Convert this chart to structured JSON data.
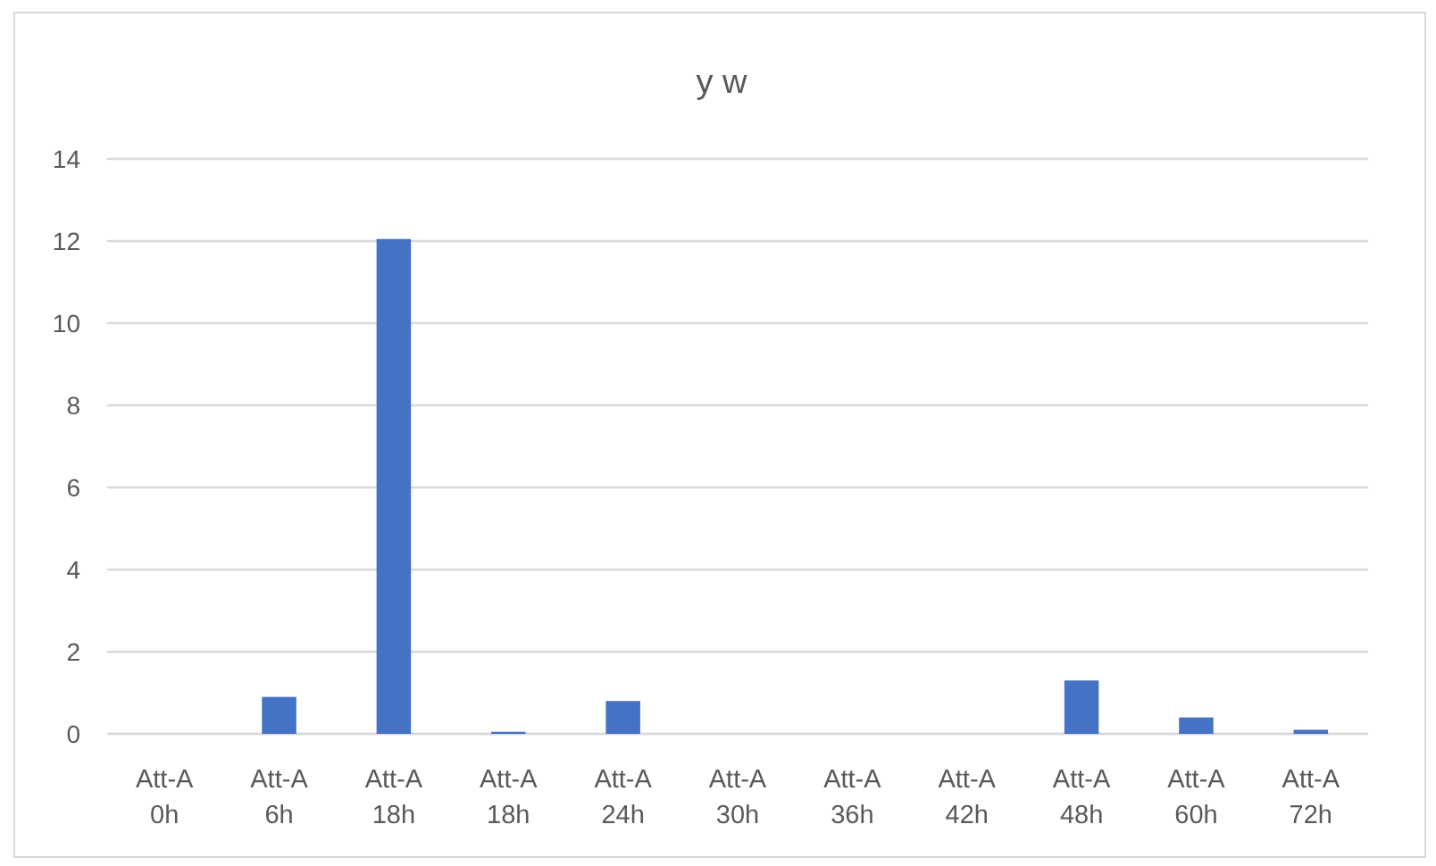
{
  "chart_data": {
    "type": "bar",
    "title": "y w",
    "categories": [
      "Att-A 0h",
      "Att-A 6h",
      "Att-A 18h",
      "Att-A 18h",
      "Att-A 24h",
      "Att-A 30h",
      "Att-A 36h",
      "Att-A 42h",
      "Att-A 48h",
      "Att-A 60h",
      "Att-A 72h"
    ],
    "values": [
      0,
      0.9,
      12.05,
      0.05,
      0.8,
      0,
      0,
      0,
      1.3,
      0.4,
      0.1
    ],
    "color": "#4472c4",
    "ylim": [
      0,
      14
    ],
    "yticks": [
      0,
      2,
      4,
      6,
      8,
      10,
      12,
      14
    ],
    "grid": "y"
  }
}
